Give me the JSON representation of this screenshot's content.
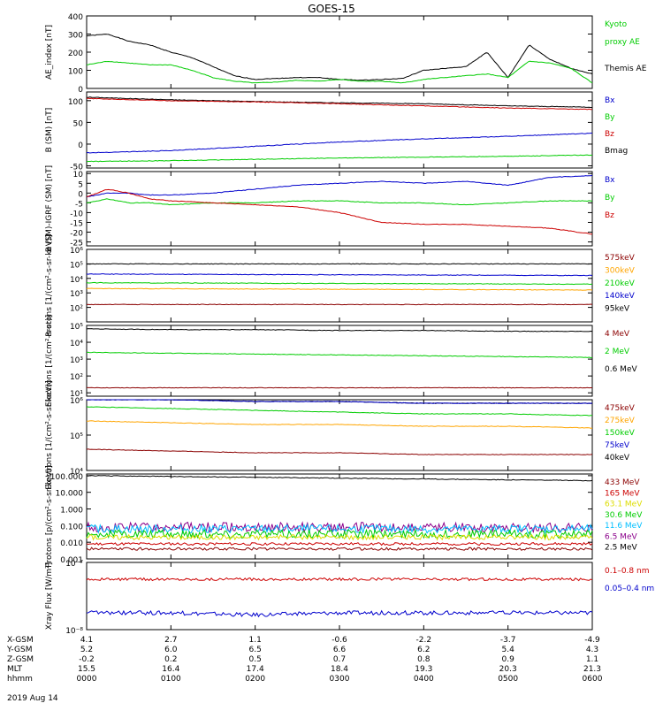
{
  "title": "GOES-15",
  "footer_date": "2019 Aug 14",
  "colors": {
    "black": "#000000",
    "green": "#00cc00",
    "blue": "#0000cc",
    "red": "#cc0000",
    "orange": "#ffa500",
    "yellow": "#dddd00",
    "cyan": "#00bfff",
    "purple": "#8b008b",
    "brown": "#8b0000"
  },
  "ephemeris": {
    "rows": [
      {
        "label": "X-GSM",
        "values": [
          "4.1",
          "2.7",
          "1.1",
          "-0.6",
          "-2.2",
          "-3.7",
          "-4.9"
        ]
      },
      {
        "label": "Y-GSM",
        "values": [
          "5.2",
          "6.0",
          "6.5",
          "6.6",
          "6.2",
          "5.4",
          "4.3"
        ]
      },
      {
        "label": "Z-GSM",
        "values": [
          "-0.2",
          "0.2",
          "0.5",
          "0.7",
          "0.8",
          "0.9",
          "1.1"
        ]
      },
      {
        "label": "MLT",
        "values": [
          "15.5",
          "16.4",
          "17.4",
          "18.4",
          "19.3",
          "20.3",
          "21.3"
        ]
      },
      {
        "label": "hhmm",
        "values": [
          "0000",
          "0100",
          "0200",
          "0300",
          "0400",
          "0500",
          "0600"
        ]
      }
    ]
  },
  "chart_data": [
    {
      "type": "line",
      "ylabel": "AE_index [nT]",
      "ylim": [
        0,
        400
      ],
      "yticks": [
        "0",
        "100",
        "200",
        "300",
        "400"
      ],
      "legend": [
        {
          "text": "Kyoto",
          "color": "#00cc00"
        },
        {
          "text": "proxy AE",
          "color": "#00cc00"
        },
        {
          "text": "Themis AE",
          "color": "#000000"
        }
      ],
      "x": [
        0,
        0.25,
        0.5,
        0.75,
        1,
        1.25,
        1.5,
        1.75,
        2,
        2.25,
        2.5,
        2.75,
        3,
        3.25,
        3.5,
        3.75,
        4,
        4.25,
        4.5,
        4.75,
        5,
        5.25,
        5.5,
        5.75,
        6
      ],
      "series": [
        {
          "name": "Themis AE",
          "color": "#000000",
          "values": [
            290,
            300,
            260,
            240,
            200,
            170,
            120,
            70,
            50,
            55,
            60,
            60,
            50,
            45,
            50,
            55,
            100,
            110,
            120,
            200,
            60,
            240,
            160,
            110,
            80
          ]
        },
        {
          "name": "Kyoto proxy AE",
          "color": "#00cc00",
          "values": [
            130,
            150,
            140,
            130,
            130,
            100,
            60,
            40,
            30,
            35,
            45,
            40,
            50,
            40,
            40,
            30,
            50,
            60,
            70,
            80,
            60,
            150,
            140,
            110,
            30
          ]
        }
      ]
    },
    {
      "type": "line",
      "ylabel": "B (SM) [nT]",
      "ylim": [
        -55,
        120
      ],
      "yticks": [
        "-50",
        "0",
        "50",
        "100"
      ],
      "tickvals": [
        -50,
        0,
        50,
        100
      ],
      "legend": [
        {
          "text": "Bx",
          "color": "#0000cc"
        },
        {
          "text": "By",
          "color": "#00cc00"
        },
        {
          "text": "Bz",
          "color": "#cc0000"
        },
        {
          "text": "Bmag",
          "color": "#000000"
        }
      ],
      "x": [
        0,
        1,
        2,
        3,
        4,
        5,
        6
      ],
      "series": [
        {
          "name": "Bmag",
          "color": "#000000",
          "values": [
            108,
            102,
            98,
            95,
            93,
            88,
            85
          ]
        },
        {
          "name": "Bz",
          "color": "#cc0000",
          "values": [
            105,
            100,
            97,
            93,
            88,
            83,
            80
          ]
        },
        {
          "name": "Bx",
          "color": "#0000cc",
          "values": [
            -20,
            -15,
            -5,
            5,
            12,
            18,
            25
          ]
        },
        {
          "name": "By",
          "color": "#00cc00",
          "values": [
            -40,
            -38,
            -35,
            -32,
            -30,
            -28,
            -25
          ]
        }
      ]
    },
    {
      "type": "line",
      "ylabel": "B (SM)-IGRF (SM) [nT]",
      "ylim": [
        -27,
        11
      ],
      "yticks": [
        "-25",
        "-20",
        "-15",
        "-10",
        "-5",
        "0",
        "5",
        "10"
      ],
      "tickvals": [
        -25,
        -20,
        -15,
        -10,
        -5,
        0,
        5,
        10
      ],
      "legend": [
        {
          "text": "Bx",
          "color": "#0000cc"
        },
        {
          "text": "By",
          "color": "#00cc00"
        },
        {
          "text": "Bz",
          "color": "#cc0000"
        }
      ],
      "x": [
        0,
        0.25,
        0.5,
        0.75,
        1,
        1.5,
        2,
        2.5,
        3,
        3.5,
        4,
        4.5,
        5,
        5.5,
        6
      ],
      "series": [
        {
          "name": "Bx",
          "color": "#0000cc",
          "values": [
            -2,
            0,
            0,
            -1,
            -1,
            0,
            2,
            4,
            5,
            6,
            5,
            6,
            4,
            8,
            9
          ]
        },
        {
          "name": "By",
          "color": "#00cc00",
          "values": [
            -5,
            -3,
            -5,
            -5,
            -6,
            -5,
            -5,
            -4,
            -4,
            -5,
            -5,
            -6,
            -5,
            -4,
            -4
          ]
        },
        {
          "name": "Bz",
          "color": "#cc0000",
          "values": [
            -2,
            2,
            0,
            -3,
            -4,
            -5,
            -6,
            -7,
            -10,
            -15,
            -16,
            -16,
            -17,
            -18,
            -21
          ]
        }
      ]
    },
    {
      "type": "line",
      "ylabel": "Protons [1/(cm²-s-sr-keV)]",
      "yscale": "log",
      "ylim": [
        1,
        6
      ],
      "yticks": [
        "10²",
        "10³",
        "10⁴",
        "10⁵",
        "10⁶"
      ],
      "tickvals": [
        2,
        3,
        4,
        5,
        6
      ],
      "legend": [
        {
          "text": "575keV",
          "color": "#8b0000"
        },
        {
          "text": "300keV",
          "color": "#ffa500"
        },
        {
          "text": "210keV",
          "color": "#00cc00"
        },
        {
          "text": "140keV",
          "color": "#0000cc"
        },
        {
          "text": "95keV",
          "color": "#000000"
        }
      ],
      "x": [
        0,
        6
      ],
      "series": [
        {
          "name": "95keV",
          "color": "#000000",
          "values": [
            5.0,
            5.0
          ]
        },
        {
          "name": "140keV",
          "color": "#0000cc",
          "values": [
            4.3,
            4.2
          ]
        },
        {
          "name": "210keV",
          "color": "#00cc00",
          "values": [
            3.7,
            3.6
          ]
        },
        {
          "name": "300keV",
          "color": "#ffa500",
          "values": [
            3.3,
            3.2
          ]
        },
        {
          "name": "575keV",
          "color": "#8b0000",
          "values": [
            2.2,
            2.2
          ]
        }
      ]
    },
    {
      "type": "line",
      "ylabel": "Electrons [1/(cm²-s-sr)]",
      "yscale": "log",
      "ylim": [
        0.8,
        5
      ],
      "yticks": [
        "10¹",
        "10²",
        "10³",
        "10⁴",
        "10⁵"
      ],
      "tickvals": [
        1,
        2,
        3,
        4,
        5
      ],
      "legend": [
        {
          "text": "4 MeV",
          "color": "#8b0000"
        },
        {
          "text": "2 MeV",
          "color": "#00cc00"
        },
        {
          "text": "0.6 MeV",
          "color": "#000000"
        }
      ],
      "x": [
        0,
        1,
        2,
        3,
        4,
        5,
        6
      ],
      "series": [
        {
          "name": "0.6 MeV",
          "color": "#000000",
          "values": [
            4.8,
            4.75,
            4.75,
            4.7,
            4.7,
            4.65,
            4.65
          ]
        },
        {
          "name": "2 MeV",
          "color": "#00cc00",
          "values": [
            3.4,
            3.35,
            3.3,
            3.25,
            3.2,
            3.15,
            3.1
          ]
        },
        {
          "name": "4 MeV",
          "color": "#8b0000",
          "values": [
            1.3,
            1.3,
            1.3,
            1.3,
            1.3,
            1.3,
            1.3
          ]
        }
      ]
    },
    {
      "type": "line",
      "ylabel": "Electrons [1/(cm²-s-sr-keV)]",
      "yscale": "log",
      "ylim": [
        4,
        6
      ],
      "yticks": [
        "10⁴",
        "10⁵",
        "10⁶"
      ],
      "tickvals": [
        4,
        5,
        6
      ],
      "legend": [
        {
          "text": "475keV",
          "color": "#8b0000"
        },
        {
          "text": "275keV",
          "color": "#ffa500"
        },
        {
          "text": "150keV",
          "color": "#00cc00"
        },
        {
          "text": "75keV",
          "color": "#0000cc"
        },
        {
          "text": "40keV",
          "color": "#000000"
        }
      ],
      "x": [
        0,
        1,
        2,
        3,
        4,
        5,
        6
      ],
      "series": [
        {
          "name": "40keV",
          "color": "#000000",
          "values": [
            6.0,
            6.0,
            5.95,
            5.95,
            5.9,
            5.9,
            5.9
          ]
        },
        {
          "name": "75keV",
          "color": "#0000cc",
          "values": [
            6.0,
            6.0,
            5.95,
            5.95,
            5.9,
            5.9,
            5.9
          ]
        },
        {
          "name": "150keV",
          "color": "#00cc00",
          "values": [
            5.8,
            5.75,
            5.7,
            5.65,
            5.6,
            5.6,
            5.55
          ]
        },
        {
          "name": "275keV",
          "color": "#ffa500",
          "values": [
            5.4,
            5.35,
            5.3,
            5.3,
            5.25,
            5.25,
            5.2
          ]
        },
        {
          "name": "475keV",
          "color": "#8b0000",
          "values": [
            4.6,
            4.55,
            4.5,
            4.5,
            4.45,
            4.45,
            4.45
          ]
        }
      ]
    },
    {
      "type": "line",
      "ylabel": "Protons [p/(cm²-s-sr-keV)]",
      "yscale": "log",
      "ylim": [
        -3,
        2.1
      ],
      "yticks": [
        "0.001",
        "0.010",
        "0.100",
        "1.000",
        "10.000",
        "100.000"
      ],
      "tickvals": [
        -3,
        -2,
        -1,
        0,
        1,
        2
      ],
      "legend": [
        {
          "text": "433 MeV",
          "color": "#8b0000"
        },
        {
          "text": "165 MeV",
          "color": "#cc0000"
        },
        {
          "text": "63.1 MeV",
          "color": "#dddd00"
        },
        {
          "text": "30.6 MeV",
          "color": "#00cc00"
        },
        {
          "text": "11.6 MeV",
          "color": "#00bfff"
        },
        {
          "text": "6.5 MeV",
          "color": "#8b008b"
        },
        {
          "text": "2.5 MeV",
          "color": "#000000"
        }
      ],
      "x": [
        0,
        1,
        2,
        3,
        4,
        5,
        6
      ],
      "series": [
        {
          "name": "2.5 MeV",
          "color": "#000000",
          "values": [
            2.0,
            1.95,
            1.9,
            1.85,
            1.8,
            1.75,
            1.7
          ]
        },
        {
          "name": "6.5 MeV",
          "color": "#8b008b",
          "values": [
            -1.1,
            -1.1,
            -1.1,
            -1.1,
            -1.1,
            -1.1,
            -1.1
          ],
          "noise": 0.3
        },
        {
          "name": "11.6 MeV",
          "color": "#00bfff",
          "values": [
            -1.2,
            -1.2,
            -1.2,
            -1.2,
            -1.2,
            -1.2,
            -1.2
          ],
          "noise": 0.25
        },
        {
          "name": "30.6 MeV",
          "color": "#00cc00",
          "values": [
            -1.5,
            -1.5,
            -1.5,
            -1.5,
            -1.5,
            -1.5,
            -1.5
          ],
          "noise": 0.25
        },
        {
          "name": "63.1 MeV",
          "color": "#dddd00",
          "values": [
            -1.7,
            -1.7,
            -1.7,
            -1.7,
            -1.7,
            -1.7,
            -1.7
          ],
          "noise": 0.15
        },
        {
          "name": "165 MeV",
          "color": "#cc0000",
          "values": [
            -2.1,
            -2.1,
            -2.1,
            -2.1,
            -2.1,
            -2.1,
            -2.1
          ],
          "noise": 0.08
        },
        {
          "name": "433 MeV",
          "color": "#8b0000",
          "values": [
            -2.4,
            -2.4,
            -2.4,
            -2.4,
            -2.4,
            -2.4,
            -2.4
          ],
          "noise": 0.08
        }
      ]
    },
    {
      "type": "line",
      "ylabel": "Xray Flux [W/m²]",
      "yscale": "log",
      "ylim": [
        -8,
        -7
      ],
      "yticks": [
        "10⁻⁸",
        "10⁻⁷"
      ],
      "tickvals": [
        -8,
        -7
      ],
      "legend": [
        {
          "text": "0.1–0.8 nm",
          "color": "#cc0000"
        },
        {
          "text": "0.05–0.4 nm",
          "color": "#0000cc"
        }
      ],
      "x": [
        0,
        1,
        2,
        3,
        4,
        5,
        6
      ],
      "series": [
        {
          "name": "0.1–0.8 nm",
          "color": "#cc0000",
          "values": [
            -7.25,
            -7.25,
            -7.25,
            -7.25,
            -7.25,
            -7.25,
            -7.25
          ],
          "noise": 0.02
        },
        {
          "name": "0.05–0.4 nm",
          "color": "#0000cc",
          "values": [
            -7.75,
            -7.75,
            -7.78,
            -7.75,
            -7.75,
            -7.75,
            -7.75
          ],
          "noise": 0.03
        }
      ]
    }
  ]
}
